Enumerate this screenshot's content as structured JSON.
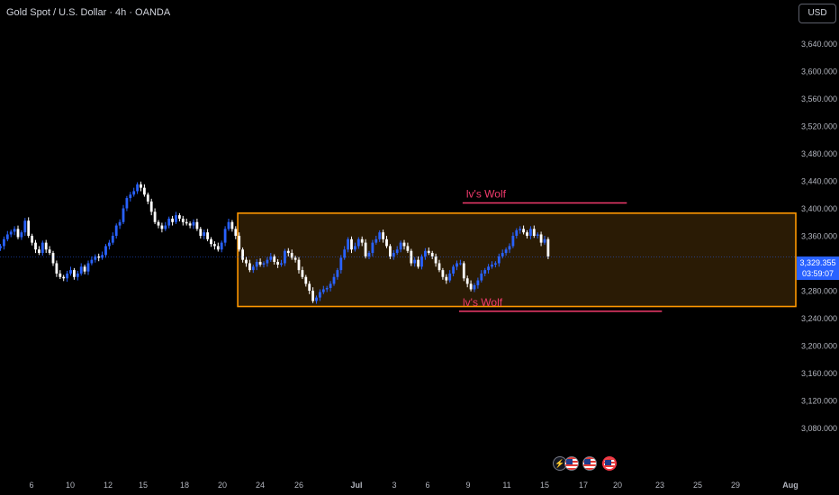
{
  "header": {
    "title": "Gold Spot / U.S. Dollar · 4h · OANDA",
    "currency_button": "USD"
  },
  "price_tag": {
    "price": "3,329.355",
    "countdown": "03:59:07"
  },
  "labels": {
    "upper": "lv's Wolf",
    "lower": "lv's Wolf"
  },
  "colors": {
    "up": "#2962ff",
    "down": "#ffffff",
    "box_fill": "#2a1b05",
    "box_border": "#ff9800",
    "line": "#f23b6d",
    "text": "#d1d4dc",
    "axis_text": "#b2b5be"
  },
  "icons": [
    "lightning-icon",
    "us-flag-icon",
    "us-flag-icon",
    "us-flag-icon"
  ],
  "chart_data": {
    "type": "candlestick",
    "title": "Gold Spot / U.S. Dollar · 4h · OANDA",
    "y_ticks": [
      "3,640.000",
      "3,600.000",
      "3,560.000",
      "3,520.000",
      "3,480.000",
      "3,440.000",
      "3,400.000",
      "3,360.000",
      "3,320.000",
      "3,280.000",
      "3,240.000",
      "3,200.000",
      "3,160.000",
      "3,120.000",
      "3,080.000"
    ],
    "y_tick_values": [
      3640,
      3600,
      3560,
      3520,
      3480,
      3440,
      3400,
      3360,
      3320,
      3280,
      3240,
      3200,
      3160,
      3120,
      3080
    ],
    "ylim": [
      3050,
      3650
    ],
    "x_ticks": [
      "6",
      "10",
      "12",
      "15",
      "18",
      "20",
      "24",
      "26",
      "Jul",
      "3",
      "6",
      "9",
      "11",
      "15",
      "17",
      "20",
      "23",
      "25",
      "29",
      "Aug"
    ],
    "current_price": 3329.355,
    "zone": {
      "top": 3393,
      "bottom": 3257,
      "start_candle": 64
    },
    "trendlines": [
      {
        "label": "lv's Wolf",
        "price": 3400,
        "from_candle": 126,
        "to_candle": 172
      },
      {
        "label": "lv's Wolf",
        "price": 3250,
        "from_candle": 125,
        "to_candle": 182
      }
    ],
    "closes": [
      3345,
      3355,
      3362,
      3366,
      3370,
      3358,
      3365,
      3382,
      3360,
      3350,
      3340,
      3335,
      3350,
      3340,
      3335,
      3320,
      3305,
      3300,
      3298,
      3305,
      3310,
      3300,
      3305,
      3315,
      3308,
      3320,
      3325,
      3330,
      3328,
      3332,
      3345,
      3350,
      3360,
      3375,
      3380,
      3400,
      3415,
      3420,
      3425,
      3435,
      3430,
      3420,
      3410,
      3395,
      3380,
      3375,
      3370,
      3375,
      3385,
      3380,
      3390,
      3385,
      3380,
      3378,
      3375,
      3380,
      3370,
      3360,
      3365,
      3355,
      3348,
      3345,
      3340,
      3350,
      3370,
      3380,
      3370,
      3360,
      3340,
      3325,
      3320,
      3310,
      3315,
      3322,
      3318,
      3320,
      3325,
      3330,
      3322,
      3318,
      3320,
      3338,
      3335,
      3328,
      3325,
      3310,
      3300,
      3290,
      3280,
      3265,
      3270,
      3278,
      3282,
      3284,
      3290,
      3300,
      3310,
      3328,
      3340,
      3355,
      3340,
      3345,
      3355,
      3350,
      3330,
      3335,
      3350,
      3355,
      3365,
      3355,
      3345,
      3330,
      3335,
      3340,
      3350,
      3345,
      3338,
      3320,
      3325,
      3315,
      3330,
      3338,
      3335,
      3330,
      3320,
      3310,
      3300,
      3295,
      3305,
      3315,
      3320,
      3320,
      3298,
      3290,
      3282,
      3288,
      3295,
      3305,
      3310,
      3315,
      3318,
      3320,
      3330,
      3335,
      3340,
      3345,
      3360,
      3368,
      3370,
      3365,
      3360,
      3370,
      3360,
      3362,
      3350,
      3355,
      3330
    ]
  }
}
